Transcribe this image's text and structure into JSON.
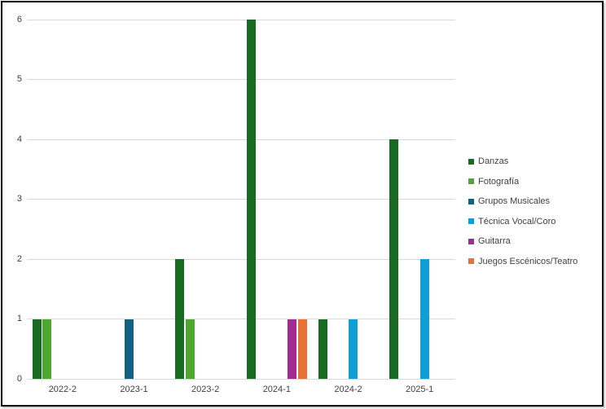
{
  "chart_data": {
    "type": "bar",
    "title": "",
    "xlabel": "",
    "ylabel": "",
    "categories": [
      "2022-2",
      "2023-1",
      "2023-2",
      "2024-1",
      "2024-2",
      "2025-1"
    ],
    "series": [
      {
        "name": "Danzas",
        "color": "#196B24",
        "values": [
          1,
          0,
          2,
          6,
          1,
          4
        ]
      },
      {
        "name": "Fotografía",
        "color": "#4EA72E",
        "values": [
          1,
          0,
          1,
          0,
          0,
          0
        ]
      },
      {
        "name": "Grupos Musicales",
        "color": "#156082",
        "values": [
          0,
          1,
          0,
          0,
          0,
          0
        ]
      },
      {
        "name": "Técnica Vocal/Coro",
        "color": "#0F9ED5",
        "values": [
          0,
          0,
          0,
          0,
          1,
          2
        ]
      },
      {
        "name": "Guitarra",
        "color": "#A02B93",
        "values": [
          0,
          0,
          0,
          1,
          0,
          0
        ]
      },
      {
        "name": "Juegos Escénicos/Teatro",
        "color": "#E97132",
        "values": [
          0,
          0,
          0,
          1,
          0,
          0
        ]
      }
    ],
    "y_ticks": [
      0,
      1,
      2,
      3,
      4,
      5,
      6
    ],
    "ylim": [
      0,
      6
    ],
    "grid": true,
    "legend_position": "right",
    "colors": {
      "gridline": "#d9d9d9",
      "axis_text": "#404040",
      "frame_border": "#000000",
      "background": "#ffffff"
    }
  }
}
